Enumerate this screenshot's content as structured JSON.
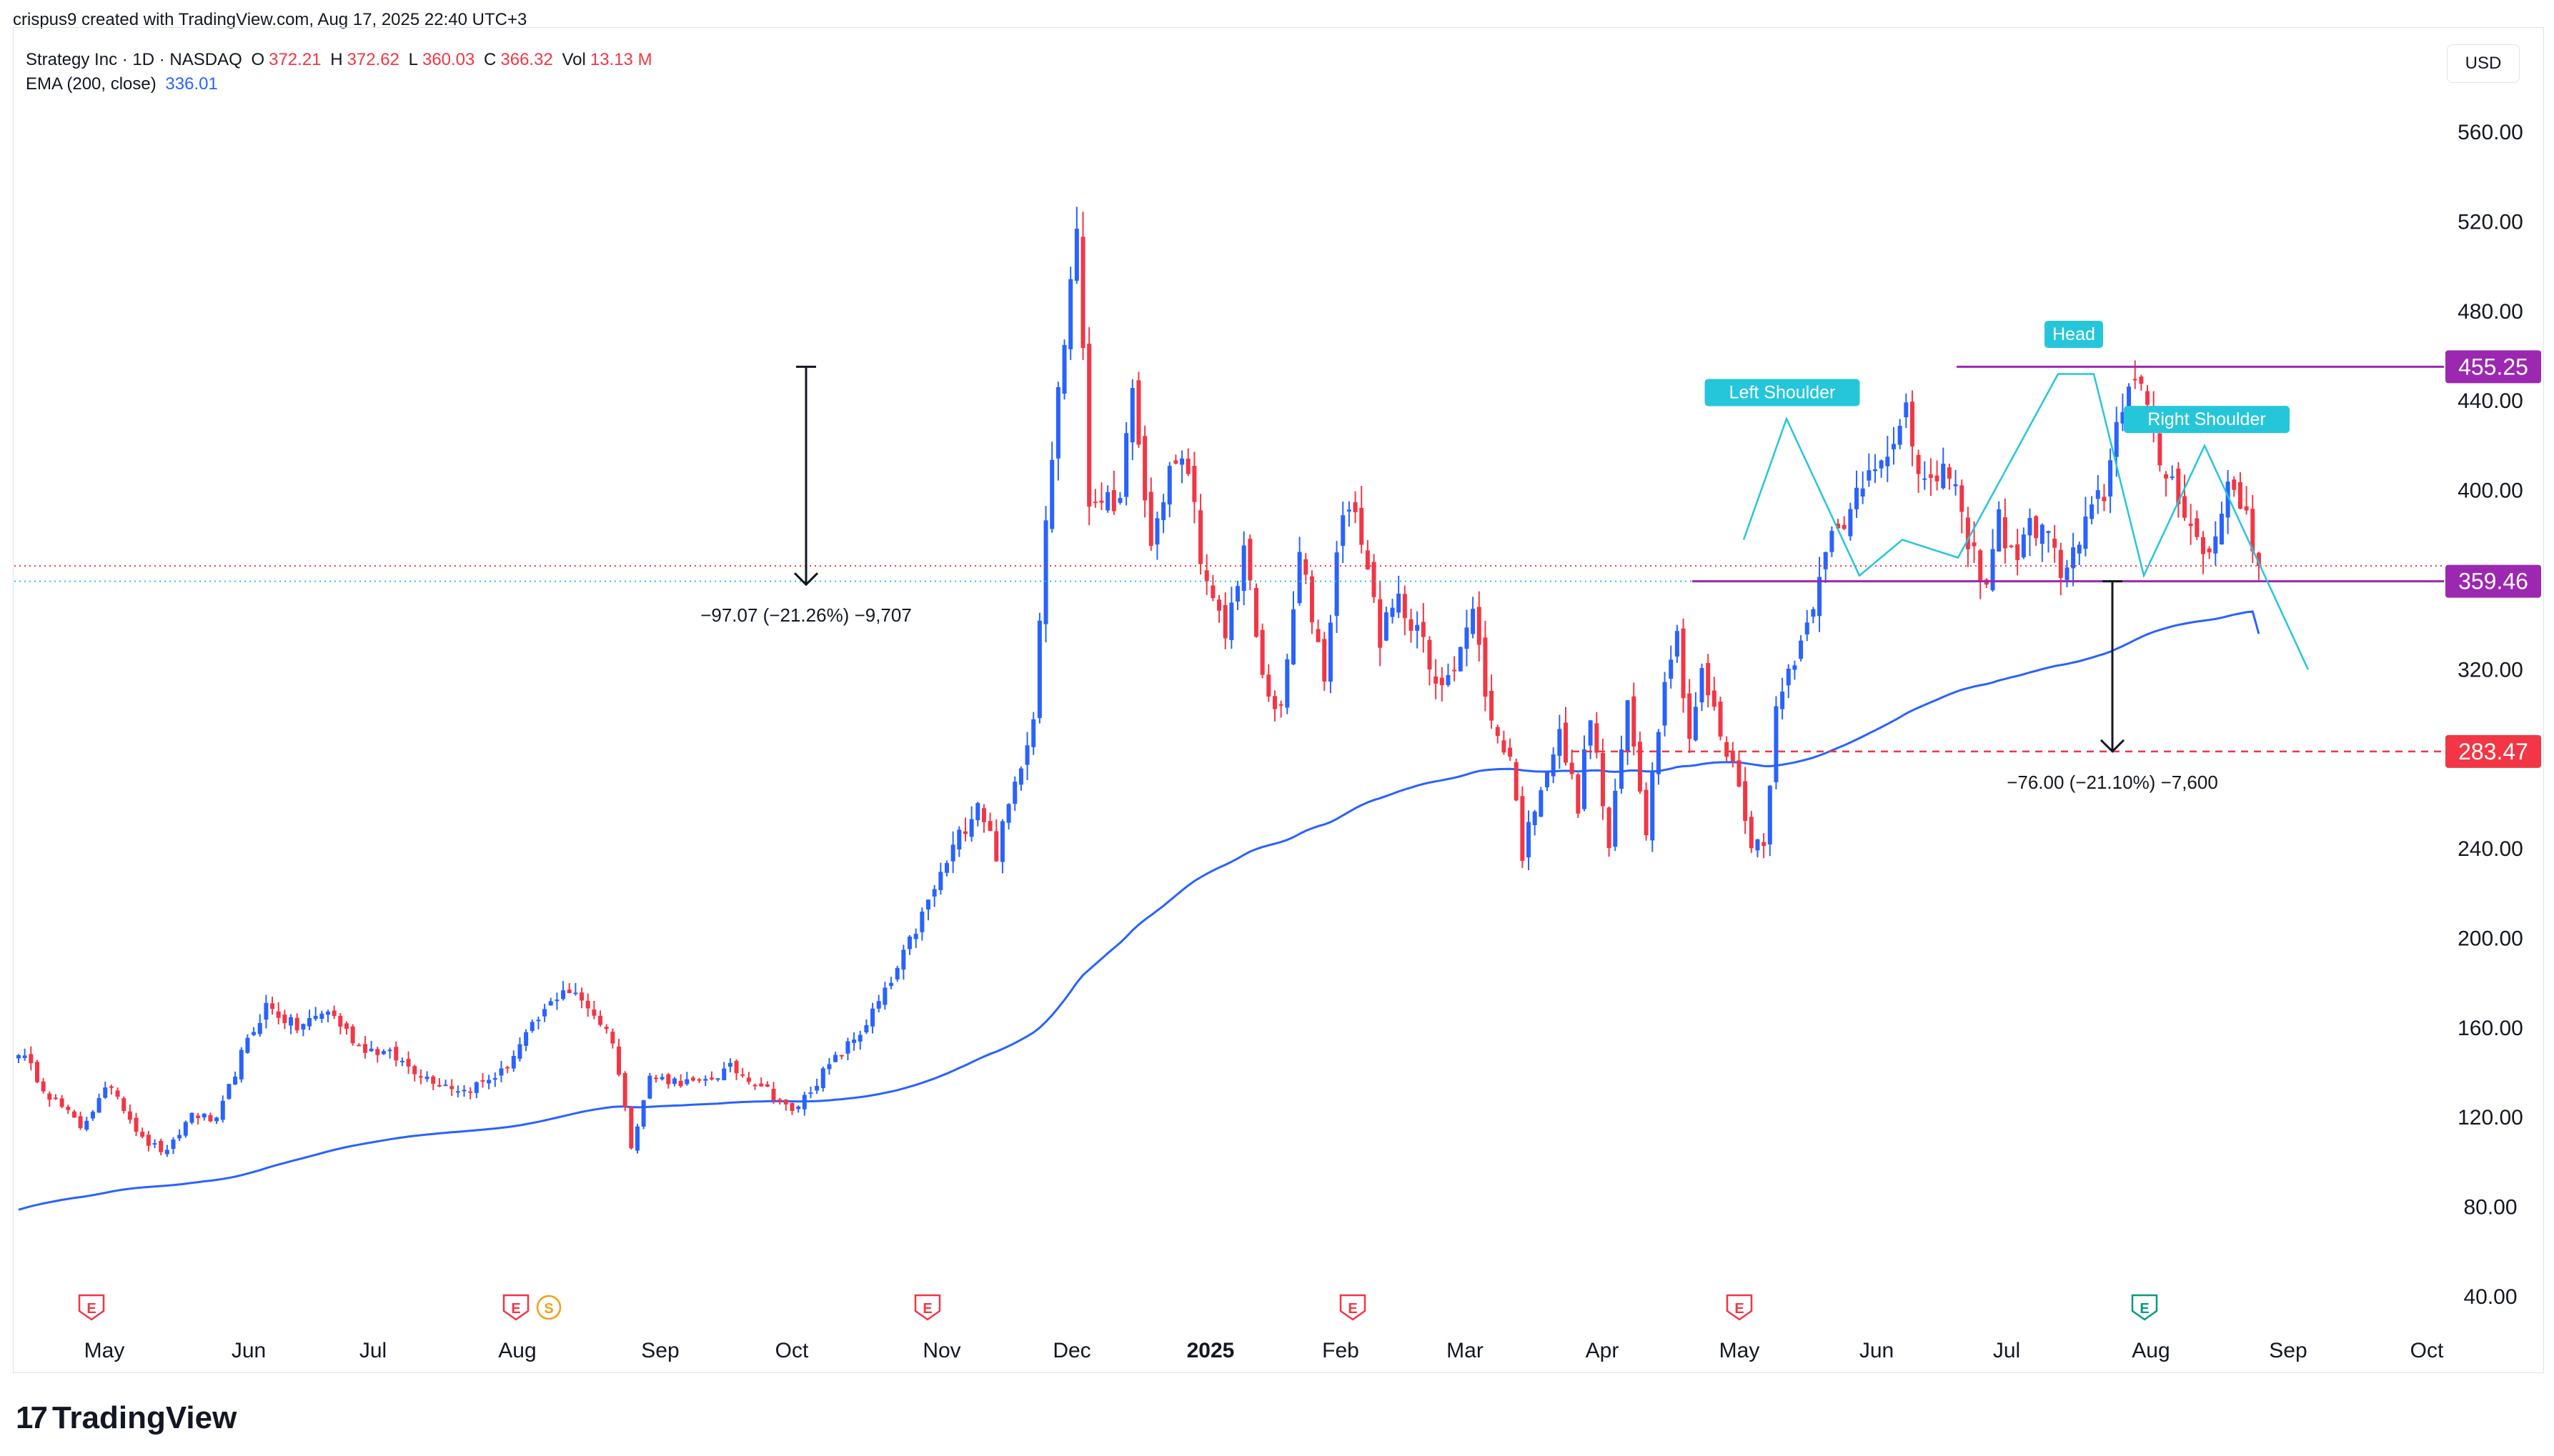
{
  "header": {
    "created_by": "crispus9 created with TradingView.com, Aug 17, 2025 22:40 UTC+3"
  },
  "legend": {
    "symbol": "Strategy Inc · 1D · NASDAQ",
    "o_label": "O",
    "o_value": "372.21",
    "h_label": "H",
    "h_value": "372.62",
    "l_label": "L",
    "l_value": "360.03",
    "c_label": "C",
    "c_value": "366.32",
    "vol_label": "Vol",
    "vol_value": "13.13 M",
    "ema_label": "EMA (200, close)",
    "ema_value": "336.01"
  },
  "currency": "USD",
  "logo": {
    "text": "TradingView"
  },
  "colors": {
    "up": "#2962ff",
    "down": "#f23645",
    "ema": "#2962ff",
    "neckline": "#9c27b0",
    "pattern": "#26c6da",
    "target": "#f23645",
    "text": "#131722"
  },
  "chart_data": {
    "type": "candlestick",
    "ylim": [
      40,
      580
    ],
    "yticks": [
      "560.00",
      "520.00",
      "480.00",
      "440.00",
      "400.00",
      "360.00",
      "320.00",
      "280.00",
      "240.00",
      "200.00",
      "160.00",
      "120.00",
      "80.00",
      "40.00"
    ],
    "x_axis_labels": [
      "May",
      "Jun",
      "Jul",
      "Aug",
      "Sep",
      "Oct",
      "Nov",
      "Dec",
      "2025",
      "Feb",
      "Mar",
      "Apr",
      "May",
      "Jun",
      "Jul",
      "Aug",
      "Sep",
      "Oct"
    ],
    "price_labels": [
      {
        "text": "455.25",
        "value": 455.25,
        "color": "#9c27b0"
      },
      {
        "text": "359.46",
        "value": 359.46,
        "color": "#9c27b0"
      },
      {
        "text": "283.47",
        "value": 283.47,
        "color": "#f23645"
      }
    ],
    "last_close": 366.32,
    "ema_last": 336.01,
    "pattern_labels": [
      "Left Shoulder",
      "Head",
      "Right Shoulder"
    ],
    "measurements": [
      {
        "text": "−97.07 (−21.26%) −9,707",
        "from": 455.25,
        "to": 358.0
      },
      {
        "text": "−76.00 (−21.10%) −7,600",
        "from": 359.46,
        "to": 283.47
      }
    ],
    "events": [
      "E",
      "E",
      "S",
      "E",
      "E",
      "E",
      "E",
      "E"
    ],
    "anchors": [
      [
        0,
        150
      ],
      [
        5,
        130
      ],
      [
        10,
        116
      ],
      [
        15,
        135
      ],
      [
        20,
        110
      ],
      [
        24,
        104
      ],
      [
        28,
        122
      ],
      [
        32,
        118
      ],
      [
        36,
        148
      ],
      [
        40,
        170
      ],
      [
        45,
        160
      ],
      [
        50,
        168
      ],
      [
        55,
        152
      ],
      [
        60,
        148
      ],
      [
        66,
        138
      ],
      [
        72,
        132
      ],
      [
        78,
        140
      ],
      [
        83,
        160
      ],
      [
        88,
        178
      ],
      [
        92,
        170
      ],
      [
        96,
        155
      ],
      [
        99,
        108
      ],
      [
        102,
        138
      ],
      [
        110,
        135
      ],
      [
        115,
        142
      ],
      [
        120,
        135
      ],
      [
        125,
        122
      ],
      [
        130,
        140
      ],
      [
        136,
        158
      ],
      [
        141,
        180
      ],
      [
        146,
        210
      ],
      [
        151,
        240
      ],
      [
        155,
        262
      ],
      [
        158,
        238
      ],
      [
        162,
        280
      ],
      [
        164,
        300
      ],
      [
        166,
        392
      ],
      [
        169,
        468
      ],
      [
        171,
        520
      ],
      [
        173,
        395
      ],
      [
        175,
        400
      ],
      [
        177,
        385
      ],
      [
        180,
        440
      ],
      [
        183,
        375
      ],
      [
        186,
        410
      ],
      [
        189,
        410
      ],
      [
        192,
        355
      ],
      [
        195,
        335
      ],
      [
        198,
        375
      ],
      [
        201,
        315
      ],
      [
        204,
        300
      ],
      [
        207,
        370
      ],
      [
        209,
        345
      ],
      [
        211,
        318
      ],
      [
        214,
        395
      ],
      [
        217,
        380
      ],
      [
        220,
        335
      ],
      [
        223,
        350
      ],
      [
        226,
        340
      ],
      [
        229,
        310
      ],
      [
        232,
        325
      ],
      [
        235,
        345
      ],
      [
        238,
        295
      ],
      [
        241,
        282
      ],
      [
        243,
        238
      ],
      [
        246,
        270
      ],
      [
        249,
        290
      ],
      [
        252,
        260
      ],
      [
        254,
        300
      ],
      [
        257,
        240
      ],
      [
        260,
        305
      ],
      [
        263,
        250
      ],
      [
        266,
        320
      ],
      [
        268,
        335
      ],
      [
        270,
        290
      ],
      [
        272,
        318
      ],
      [
        274,
        300
      ],
      [
        276,
        282
      ],
      [
        278,
        270
      ],
      [
        280,
        240
      ],
      [
        282,
        245
      ],
      [
        284,
        300
      ],
      [
        286,
        320
      ],
      [
        289,
        340
      ],
      [
        292,
        378
      ],
      [
        295,
        380
      ],
      [
        297,
        400
      ],
      [
        299,
        410
      ],
      [
        301,
        420
      ],
      [
        303,
        418
      ],
      [
        305,
        432
      ],
      [
        307,
        410
      ],
      [
        310,
        398
      ],
      [
        312,
        412
      ],
      [
        315,
        375
      ],
      [
        318,
        360
      ],
      [
        320,
        388
      ],
      [
        322,
        370
      ],
      [
        325,
        382
      ],
      [
        327,
        387
      ],
      [
        330,
        362
      ],
      [
        333,
        375
      ],
      [
        335,
        390
      ],
      [
        337,
        400
      ],
      [
        339,
        428
      ],
      [
        341,
        452
      ],
      [
        343,
        445
      ],
      [
        345,
        420
      ],
      [
        347,
        408
      ],
      [
        349,
        400
      ],
      [
        351,
        385
      ],
      [
        353,
        370
      ],
      [
        355,
        378
      ],
      [
        357,
        405
      ],
      [
        359,
        398
      ],
      [
        361,
        372
      ],
      [
        362,
        366
      ]
    ]
  }
}
